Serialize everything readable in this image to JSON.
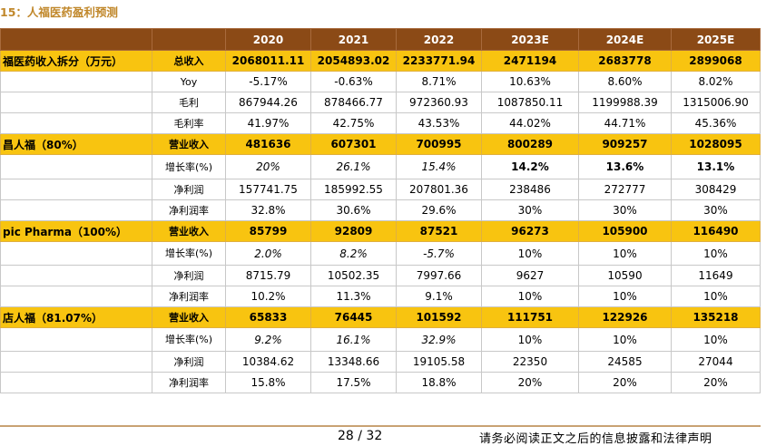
{
  "title": "15：人福医药盈利预测",
  "header": {
    "label": "",
    "key": "",
    "years": [
      "2020",
      "2021",
      "2022",
      "2023E",
      "2024E",
      "2025E"
    ]
  },
  "rows": [
    {
      "type": "hl",
      "label": "福医药收入拆分（万元）",
      "key": "总收入",
      "values": [
        "2068011.11",
        "2054893.02",
        "2233771.94",
        "2471194",
        "2683778",
        "2899068"
      ]
    },
    {
      "type": "data",
      "label": "",
      "key": "Yoy",
      "values": [
        "-5.17%",
        "-0.63%",
        "8.71%",
        "10.63%",
        "8.60%",
        "8.02%"
      ]
    },
    {
      "type": "data",
      "label": "",
      "key": "毛利",
      "values": [
        "867944.26",
        "878466.77",
        "972360.93",
        "1087850.11",
        "1199988.39",
        "1315006.90"
      ]
    },
    {
      "type": "data",
      "label": "",
      "key": "毛利率",
      "values": [
        "41.97%",
        "42.75%",
        "43.53%",
        "44.02%",
        "44.71%",
        "45.36%"
      ]
    },
    {
      "type": "hl",
      "label": "昌人福（80%）",
      "key": "营业收入",
      "values": [
        "481636",
        "607301",
        "700995",
        "800289",
        "909257",
        "1028095"
      ]
    },
    {
      "type": "growth",
      "label": "",
      "key": "增长率(%)",
      "values": [
        "20%",
        "26.1%",
        "15.4%",
        "14.2%",
        "13.6%",
        "13.1%"
      ]
    },
    {
      "type": "data",
      "label": "",
      "key": "净利润",
      "values": [
        "157741.75",
        "185992.55",
        "207801.36",
        "238486",
        "272777",
        "308429"
      ]
    },
    {
      "type": "data",
      "label": "",
      "key": "净利润率",
      "values": [
        "32.8%",
        "30.6%",
        "29.6%",
        "30%",
        "30%",
        "30%"
      ]
    },
    {
      "type": "hl",
      "label": "pic Pharma（100%）",
      "key": "营业收入",
      "values": [
        "85799",
        "92809",
        "87521",
        "96273",
        "105900",
        "116490"
      ]
    },
    {
      "type": "growth2",
      "label": "",
      "key": "增长率(%)",
      "values": [
        "2.0%",
        "8.2%",
        "-5.7%",
        "10%",
        "10%",
        "10%"
      ]
    },
    {
      "type": "data",
      "label": "",
      "key": "净利润",
      "values": [
        "8715.79",
        "10502.35",
        "7997.66",
        "9627",
        "10590",
        "11649"
      ]
    },
    {
      "type": "data",
      "label": "",
      "key": "净利润率",
      "values": [
        "10.2%",
        "11.3%",
        "9.1%",
        "10%",
        "10%",
        "10%"
      ]
    },
    {
      "type": "hl",
      "label": "店人福（81.07%）",
      "key": "营业收入",
      "values": [
        "65833",
        "76445",
        "101592",
        "111751",
        "122926",
        "135218"
      ]
    },
    {
      "type": "growth2",
      "label": "",
      "key": "增长率(%)",
      "values": [
        "9.2%",
        "16.1%",
        "32.9%",
        "10%",
        "10%",
        "10%"
      ]
    },
    {
      "type": "data",
      "label": "",
      "key": "净利润",
      "values": [
        "10384.62",
        "13348.66",
        "19105.58",
        "22350",
        "24585",
        "27044"
      ]
    },
    {
      "type": "data",
      "label": "",
      "key": "净利润率",
      "values": [
        "15.8%",
        "17.5%",
        "18.8%",
        "20%",
        "20%",
        "20%"
      ]
    }
  ],
  "footer": {
    "page": "28 / 32",
    "disclaimer": "请务必阅读正文之后的信息披露和法律声明"
  }
}
